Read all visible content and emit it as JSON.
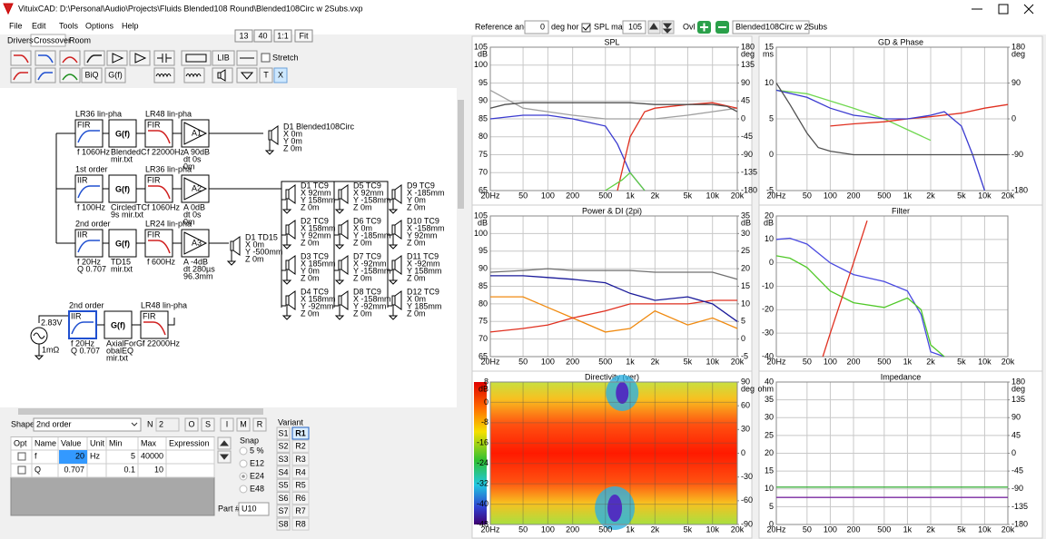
{
  "window": {
    "title": "VituixCAD: D:\\Personal\\Audio\\Projects\\Fluids Blended108 Round\\Blended108Circ w 2Subs.vxp"
  },
  "menu": [
    "File",
    "Edit",
    "Tools",
    "Options",
    "Help"
  ],
  "tabs": [
    "Drivers",
    "Crossover",
    "Room"
  ],
  "zoom": [
    "13",
    "40",
    "1:1",
    "Fit"
  ],
  "toolbar": {
    "lib": "LIB",
    "stretch": "Stretch",
    "biq": "BiQ",
    "gf": "G(f)",
    "t": "T",
    "x": "X"
  },
  "schematic": {
    "blocks": [
      {
        "header": "LR36 lin-pha",
        "label": "FIR",
        "lines": [
          "f 1060Hz"
        ]
      },
      {
        "label": "G(f)",
        "lines": [
          "BlendedC",
          "mir.txt"
        ]
      },
      {
        "header": "LR48 lin-pha",
        "label": "FIR",
        "lines": [
          "f 22000Hz"
        ]
      },
      {
        "label": "A1",
        "lines": [
          "A 90dB",
          "dt 0s",
          "0m"
        ]
      },
      {
        "header": "1st order",
        "label": "IIR",
        "lines": [
          "f 100Hz"
        ]
      },
      {
        "label": "G(f)",
        "lines": [
          "CircledTC",
          "9s mir.txt"
        ]
      },
      {
        "header": "LR36 lin-pha",
        "label": "FIR",
        "lines": [
          "f 1060Hz"
        ]
      },
      {
        "label": "A2",
        "lines": [
          "A 0dB",
          "dt 0s",
          "0m"
        ]
      },
      {
        "header": "2nd order",
        "label": "IIR",
        "lines": [
          "f 20Hz",
          "Q 0.707"
        ]
      },
      {
        "label": "G(f)",
        "lines": [
          "TD15",
          "mir.txt"
        ]
      },
      {
        "header": "LR24 lin-pha",
        "label": "FIR",
        "lines": [
          "f 600Hz"
        ]
      },
      {
        "label": "A3",
        "lines": [
          "A -4dB",
          "dt 280µs",
          "96.3mm"
        ]
      },
      {
        "header": "2nd order",
        "label": "IIR",
        "lines": [
          "f 20Hz",
          "Q 0.707"
        ]
      },
      {
        "label": "G(f)",
        "lines": [
          "AxialForGl",
          "obalEQ",
          "mir.txt"
        ]
      },
      {
        "header": "LR48 lin-pha",
        "label": "FIR",
        "lines": [
          "f 22000Hz"
        ]
      }
    ],
    "drivers": [
      {
        "name": "D1 Blended108Circ",
        "lines": [
          "X 0m",
          "Y 0m",
          "Z 0m"
        ]
      },
      {
        "name": "D1 TD15",
        "lines": [
          "X 0m",
          "Y -500mm",
          "Z 0m"
        ]
      },
      {
        "name": "D1 TC9",
        "lines": [
          "X 92mm",
          "Y 158mm",
          "Z 0m"
        ]
      },
      {
        "name": "D2 TC9",
        "lines": [
          "X 158mm",
          "Y 92mm",
          "Z 0m"
        ]
      },
      {
        "name": "D3 TC9",
        "lines": [
          "X 185mm",
          "Y 0m",
          "Z 0m"
        ]
      },
      {
        "name": "D4 TC9",
        "lines": [
          "X 158mm",
          "Y -92mm",
          "Z 0m"
        ]
      },
      {
        "name": "D5 TC9",
        "lines": [
          "X 92mm",
          "Y -158mm",
          "Z 0m"
        ]
      },
      {
        "name": "D6 TC9",
        "lines": [
          "X 0m",
          "Y -185mm",
          "Z 0m"
        ]
      },
      {
        "name": "D7 TC9",
        "lines": [
          "X -92mm",
          "Y -158mm",
          "Z 0m"
        ]
      },
      {
        "name": "D8 TC9",
        "lines": [
          "X -158mm",
          "Y -92mm",
          "Z 0m"
        ]
      },
      {
        "name": "D9 TC9",
        "lines": [
          "X -185mm",
          "Y 0m",
          "Z 0m"
        ]
      },
      {
        "name": "D10 TC9",
        "lines": [
          "X -158mm",
          "Y 92mm",
          "Z 0m"
        ]
      },
      {
        "name": "D11 TC9",
        "lines": [
          "X -92mm",
          "Y 158mm",
          "Z 0m"
        ]
      },
      {
        "name": "D12 TC9",
        "lines": [
          "X 0m",
          "Y 185mm",
          "Z 0m"
        ]
      }
    ],
    "source": {
      "voltage": "2.83V",
      "resistance": "1mΩ"
    }
  },
  "shape_panel": {
    "shape_label": "Shape",
    "shape": "2nd order",
    "n_label": "N",
    "n": "2",
    "buttons": [
      "O",
      "S",
      "I",
      "M",
      "R"
    ],
    "table": {
      "columns": [
        "Opt",
        "Name",
        "Value",
        "Unit",
        "Min",
        "Max",
        "Expression"
      ],
      "rows": [
        {
          "name": "f",
          "value": 20,
          "unit": "Hz",
          "min": 5,
          "max": 40000
        },
        {
          "name": "Q",
          "value": 0.707,
          "min": 0.1,
          "max": 10
        }
      ]
    },
    "snap": {
      "title": "Snap",
      "options": [
        "5 %",
        "E12",
        "E24",
        "E48"
      ]
    },
    "part_label": "Part #",
    "part": "U10",
    "variant": {
      "title": "Variant",
      "s": [
        "S1",
        "S2",
        "S3",
        "S4",
        "S5",
        "S6",
        "S7",
        "S8"
      ],
      "r": [
        "R1",
        "R2",
        "R3",
        "R4",
        "R5",
        "R6",
        "R7",
        "R8"
      ]
    }
  },
  "graph_toolbar": {
    "reference_label": "Reference angle",
    "reference": 0,
    "deg_hor": "deg hor",
    "spl_max_label": "SPL max",
    "spl_max": 105,
    "ovl": "Ovl",
    "overlay": "Blended108Circ w 2Subs"
  },
  "graphs": [
    {
      "title": "SPL",
      "y_unit": "dB",
      "y2_unit": "deg",
      "xscale": "log",
      "grid": true,
      "xlim": [
        20,
        20000
      ],
      "xticks": [
        {
          "value": 20,
          "label": "20Hz"
        },
        50,
        100,
        200,
        500,
        {
          "value": 1000,
          "label": "1k"
        },
        {
          "value": 2000,
          "label": "2k"
        },
        {
          "value": 5000,
          "label": "5k"
        },
        {
          "value": 10000,
          "label": "10k"
        },
        {
          "value": 20000,
          "label": "20k"
        }
      ],
      "ylim": [
        65,
        105
      ],
      "yticks": [
        105,
        100,
        95,
        90,
        85,
        80,
        75,
        70,
        65
      ],
      "y2lim": [
        -180,
        180
      ],
      "y2ticks": [
        180,
        135,
        90,
        45,
        0,
        -45,
        -90,
        -135,
        -180
      ],
      "series": [
        {
          "color": "#a0a0a0",
          "x": [
            20,
            50,
            100,
            200,
            500,
            1000,
            2000,
            5000,
            10000,
            20000
          ],
          "values": [
            93,
            88,
            87,
            86,
            85,
            85,
            85,
            86,
            87,
            88
          ]
        },
        {
          "color": "#3a3ad0",
          "x": [
            20,
            50,
            100,
            200,
            500,
            700,
            1000,
            1500
          ],
          "values": [
            85,
            86,
            86,
            85,
            83,
            78,
            70,
            65
          ]
        },
        {
          "color": "#e03020",
          "x": [
            700,
            1000,
            1500,
            2000,
            5000,
            10000,
            20000
          ],
          "values": [
            65,
            80,
            87,
            88,
            89,
            89.5,
            88
          ]
        },
        {
          "color": "#60d040",
          "x": [
            500,
            800,
            1000,
            1500
          ],
          "values": [
            65,
            68,
            70,
            65
          ]
        },
        {
          "color": "#505050",
          "x": [
            20,
            30,
            50,
            100,
            200,
            500,
            1000,
            2000,
            5000,
            10000,
            15000,
            20000
          ],
          "values": [
            88,
            89,
            89.5,
            89.5,
            89.5,
            89.5,
            89.5,
            89,
            89,
            89,
            88.5,
            87
          ]
        }
      ]
    },
    {
      "title": "GD & Phase",
      "y_unit": "ms",
      "y2_unit": "deg",
      "xscale": "log",
      "grid": true,
      "xlim": [
        20,
        20000
      ],
      "xticks": [
        {
          "value": 20,
          "label": "20Hz"
        },
        50,
        100,
        200,
        500,
        {
          "value": 1000,
          "label": "1k"
        },
        {
          "value": 2000,
          "label": "2k"
        },
        {
          "value": 5000,
          "label": "5k"
        },
        {
          "value": 10000,
          "label": "10k"
        },
        {
          "value": 20000,
          "label": "20k"
        }
      ],
      "ylim": [
        -5,
        15
      ],
      "yticks": [
        15,
        10,
        5,
        0,
        -5
      ],
      "y2lim": [
        -180,
        180
      ],
      "y2ticks": [
        180,
        90,
        0,
        -90,
        -180
      ],
      "series": [
        {
          "color": "#70d850",
          "x": [
            20,
            50,
            100,
            200,
            500,
            1000,
            2000
          ],
          "values": [
            9,
            8.5,
            7.5,
            6.5,
            5,
            3.5,
            2
          ]
        },
        {
          "color": "#e03020",
          "x": [
            100,
            200,
            500,
            1000,
            2000,
            5000,
            10000,
            20000
          ],
          "values": [
            4,
            4.3,
            4.6,
            5,
            5.3,
            5.8,
            6.5,
            7
          ]
        },
        {
          "color": "#3a3ad0",
          "x": [
            20,
            50,
            100,
            200,
            500,
            1000,
            2000,
            3000,
            5000,
            7000,
            10000
          ],
          "values": [
            9,
            8,
            6.5,
            5.5,
            5,
            5,
            5.5,
            6,
            4,
            0,
            -5
          ]
        },
        {
          "color": "#505050",
          "x": [
            20,
            30,
            50,
            70,
            100,
            200,
            500,
            1000,
            2000,
            5000,
            20000
          ],
          "values": [
            10,
            7,
            3,
            1,
            0.5,
            0,
            0,
            0,
            0,
            0,
            0
          ]
        }
      ]
    },
    {
      "title": "Power & DI (2pi)",
      "y_unit": "dB",
      "y2_unit": "dB",
      "xscale": "log",
      "grid": true,
      "xlim": [
        20,
        20000
      ],
      "xticks": [
        {
          "value": 20,
          "label": "20Hz"
        },
        50,
        100,
        200,
        500,
        {
          "value": 1000,
          "label": "1k"
        },
        {
          "value": 2000,
          "label": "2k"
        },
        {
          "value": 5000,
          "label": "5k"
        },
        {
          "value": 10000,
          "label": "10k"
        },
        {
          "value": 20000,
          "label": "20k"
        }
      ],
      "ylim": [
        65,
        105
      ],
      "yticks": [
        105,
        100,
        95,
        90,
        85,
        80,
        75,
        70,
        65
      ],
      "y2lim": [
        -5,
        35
      ],
      "y2ticks": [
        35,
        30,
        25,
        20,
        15,
        10,
        5,
        0,
        -5
      ],
      "series": [
        {
          "color": "#f08a10",
          "axis": "y2",
          "x": [
            20,
            50,
            100,
            200,
            500,
            1000,
            2000,
            5000,
            10000,
            20000
          ],
          "values": [
            12,
            12,
            9,
            6,
            2,
            3,
            8,
            4,
            6,
            3
          ]
        },
        {
          "color": "#e03020",
          "x": [
            20,
            50,
            100,
            200,
            500,
            1000,
            2000,
            5000,
            10000,
            20000
          ],
          "values": [
            72,
            73,
            74,
            76,
            78,
            80,
            80,
            80,
            81,
            81
          ]
        },
        {
          "color": "#707070",
          "x": [
            20,
            50,
            100,
            200,
            500,
            1000,
            2000,
            5000,
            10000,
            20000
          ],
          "values": [
            89,
            89.5,
            90,
            89.5,
            89.5,
            89.5,
            89,
            89,
            89,
            87
          ]
        },
        {
          "color": "#1a1a9a",
          "x": [
            20,
            50,
            100,
            200,
            500,
            1000,
            2000,
            5000,
            10000,
            20000
          ],
          "values": [
            88,
            88,
            87.5,
            87,
            86,
            83,
            81,
            82,
            80,
            75
          ]
        }
      ]
    },
    {
      "title": "Filter",
      "y_unit": "dB",
      "xscale": "log",
      "grid": true,
      "xlim": [
        20,
        20000
      ],
      "xticks": [
        {
          "value": 20,
          "label": "20Hz"
        },
        50,
        100,
        200,
        500,
        {
          "value": 1000,
          "label": "1k"
        },
        {
          "value": 2000,
          "label": "2k"
        },
        {
          "value": 5000,
          "label": "5k"
        },
        {
          "value": 10000,
          "label": "10k"
        },
        {
          "value": 20000,
          "label": "20k"
        }
      ],
      "ylim": [
        -40,
        20
      ],
      "yticks": [
        20,
        10,
        0,
        -10,
        -20,
        -30,
        -40
      ],
      "series": [
        {
          "color": "#4a4ae0",
          "x": [
            20,
            30,
            50,
            100,
            200,
            500,
            1000,
            1500,
            2000,
            3000
          ],
          "values": [
            10,
            10.5,
            8,
            0,
            -5,
            -8,
            -12,
            -22,
            -38,
            -40
          ]
        },
        {
          "color": "#50c828",
          "x": [
            20,
            30,
            50,
            100,
            200,
            500,
            1000,
            1500,
            2000,
            3000
          ],
          "values": [
            3,
            2,
            -2,
            -12,
            -17,
            -19,
            -15,
            -20,
            -35,
            -40
          ]
        },
        {
          "color": "#e03020",
          "x": [
            80,
            100,
            200,
            300
          ],
          "values": [
            -40,
            -30,
            0,
            18
          ]
        }
      ]
    },
    {
      "title": "Directivity (ver)",
      "y_unit": "dB",
      "y2_unit": "deg",
      "xscale": "log",
      "grid": true,
      "heatmap": true,
      "xlim": [
        20,
        20000
      ],
      "xticks": [
        {
          "value": 20,
          "label": "20Hz"
        },
        50,
        100,
        200,
        500,
        {
          "value": 1000,
          "label": "1k"
        },
        {
          "value": 2000,
          "label": "2k"
        },
        {
          "value": 5000,
          "label": "5k"
        },
        {
          "value": 10000,
          "label": "10k"
        },
        {
          "value": 20000,
          "label": "20k"
        }
      ],
      "ylim": [
        -48,
        8
      ],
      "yticks": [
        8,
        0,
        -8,
        -16,
        -24,
        -32,
        -40,
        -48
      ],
      "y2lim": [
        -90,
        90
      ],
      "y2ticks": [
        90,
        60,
        30,
        0,
        -30,
        -60,
        -90
      ]
    },
    {
      "title": "Impedance",
      "y_unit": "ohm",
      "y2_unit": "deg",
      "xscale": "log",
      "grid": true,
      "xlim": [
        20,
        20000
      ],
      "xticks": [
        {
          "value": 20,
          "label": "20Hz"
        },
        50,
        100,
        200,
        500,
        {
          "value": 1000,
          "label": "1k"
        },
        {
          "value": 2000,
          "label": "2k"
        },
        {
          "value": 5000,
          "label": "5k"
        },
        {
          "value": 10000,
          "label": "10k"
        },
        {
          "value": 20000,
          "label": "20k"
        }
      ],
      "ylim": [
        0,
        40
      ],
      "yticks": [
        40,
        35,
        30,
        25,
        20,
        15,
        10,
        5,
        0
      ],
      "y2lim": [
        -180,
        180
      ],
      "y2ticks": [
        180,
        135,
        90,
        45,
        0,
        -45,
        -90,
        -135,
        -180
      ],
      "series": [
        {
          "color": "#40b040",
          "x": [
            20,
            20000
          ],
          "values": [
            10.5,
            10.5
          ]
        },
        {
          "color": "#7a2aa0",
          "x": [
            20,
            20000
          ],
          "values": [
            7.6,
            7.6
          ]
        }
      ]
    }
  ]
}
